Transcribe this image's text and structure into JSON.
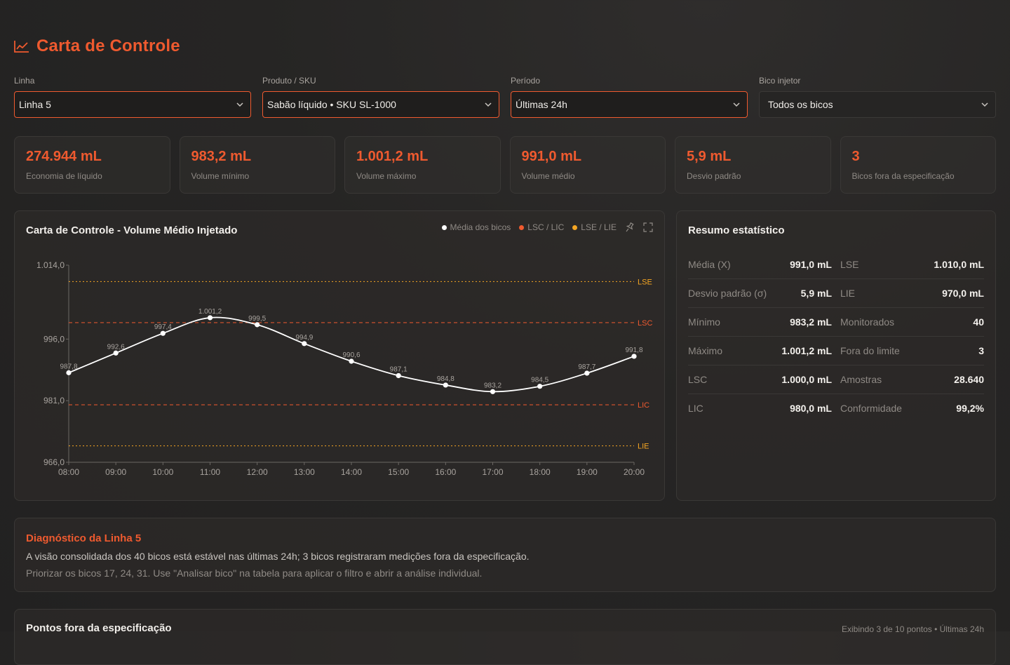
{
  "header": {
    "title": "Carta de Controle",
    "icon": "line-chart-icon"
  },
  "filters": [
    {
      "label": "Linha",
      "value": "Linha 5"
    },
    {
      "label": "Produto / SKU",
      "value": "Sabão líquido • SKU SL-1000"
    },
    {
      "label": "Período",
      "value": "Últimas 24h"
    },
    {
      "label": "Bico injetor",
      "value": "Todos os bicos"
    }
  ],
  "kpis": [
    {
      "value": "274.944 mL",
      "caption": "Economia de líquido"
    },
    {
      "value": "983,2 mL",
      "caption": "Volume mínimo"
    },
    {
      "value": "1.001,2 mL",
      "caption": "Volume máximo"
    },
    {
      "value": "991,0 mL",
      "caption": "Volume médio"
    },
    {
      "value": "5,9 mL",
      "caption": "Desvio padrão"
    },
    {
      "value": "3",
      "caption": "Bicos fora da especificação"
    }
  ],
  "chart_panel": {
    "title": "Carta de Controle - Volume Médio Injetado",
    "legend": [
      {
        "label": "Média dos bicos",
        "color": "#ffffff"
      },
      {
        "label": "LSC / LIC",
        "color": "#ef5a2f"
      },
      {
        "label": "LSE / LIE",
        "color": "#f5a623"
      }
    ],
    "tools": [
      "pin-icon",
      "expand-icon"
    ]
  },
  "chart_data": {
    "type": "line",
    "x": [
      "08:00",
      "09:00",
      "10:00",
      "11:00",
      "12:00",
      "13:00",
      "14:00",
      "15:00",
      "16:00",
      "17:00",
      "18:00",
      "19:00",
      "20:00"
    ],
    "series": [
      {
        "name": "Média dos bicos",
        "values": [
          987.8,
          992.6,
          997.4,
          1001.2,
          999.5,
          994.9,
          990.6,
          987.1,
          984.8,
          983.2,
          984.5,
          987.7,
          991.8
        ],
        "labels": [
          "987,8",
          "992,6",
          "997,4",
          "1.001,2",
          "999,5",
          "994,9",
          "990,6",
          "987,1",
          "984,8",
          "983,2",
          "984,5",
          "987,7",
          "991,8"
        ]
      }
    ],
    "reference_lines": [
      {
        "label": "LSE",
        "value": 1010,
        "color": "#f5a623"
      },
      {
        "label": "LSC",
        "value": 1000,
        "color": "#ef5a2f"
      },
      {
        "label": "LIC",
        "value": 980,
        "color": "#ef5a2f"
      },
      {
        "label": "LIE",
        "value": 970,
        "color": "#f5a623"
      }
    ],
    "ylim": [
      966,
      1014
    ],
    "yticks": [
      966,
      981,
      996,
      1014
    ],
    "ytick_labels": [
      "966,0",
      "981,0",
      "996,0",
      "1.014,0"
    ],
    "xlabel": "",
    "ylabel": ""
  },
  "stats": {
    "title": "Resumo estatístico",
    "rows": [
      [
        {
          "label": "Média (X)",
          "value": "991,0 mL"
        },
        {
          "label": "LSE",
          "value": "1.010,0 mL"
        }
      ],
      [
        {
          "label": "Desvio padrão (σ)",
          "value": "5,9 mL"
        },
        {
          "label": "LIE",
          "value": "970,0 mL"
        }
      ],
      [
        {
          "label": "Mínimo",
          "value": "983,2 mL"
        },
        {
          "label": "Monitorados",
          "value": "40"
        }
      ],
      [
        {
          "label": "Máximo",
          "value": "1.001,2 mL"
        },
        {
          "label": "Fora do limite",
          "value": "3"
        }
      ],
      [
        {
          "label": "LSC",
          "value": "1.000,0 mL"
        },
        {
          "label": "Amostras",
          "value": "28.640"
        }
      ],
      [
        {
          "label": "LIC",
          "value": "980,0 mL"
        },
        {
          "label": "Conformidade",
          "value": "99,2%"
        }
      ]
    ]
  },
  "diagnosis": {
    "title": "Diagnóstico da Linha 5",
    "line1": "A visão consolidada dos 40 bicos está estável nas últimas 24h; 3 bicos registraram medições fora da especificação.",
    "line2": "Priorizar os bicos 17, 24, 31. Use \"Analisar bico\" na tabela para aplicar o filtro e abrir a análise individual."
  },
  "out_of_spec": {
    "title": "Pontos fora da especificação",
    "meta": "Exibindo 3 de 10 pontos • Últimas 24h"
  },
  "colors": {
    "accent": "#ef5a2f",
    "spec": "#f5a623"
  }
}
